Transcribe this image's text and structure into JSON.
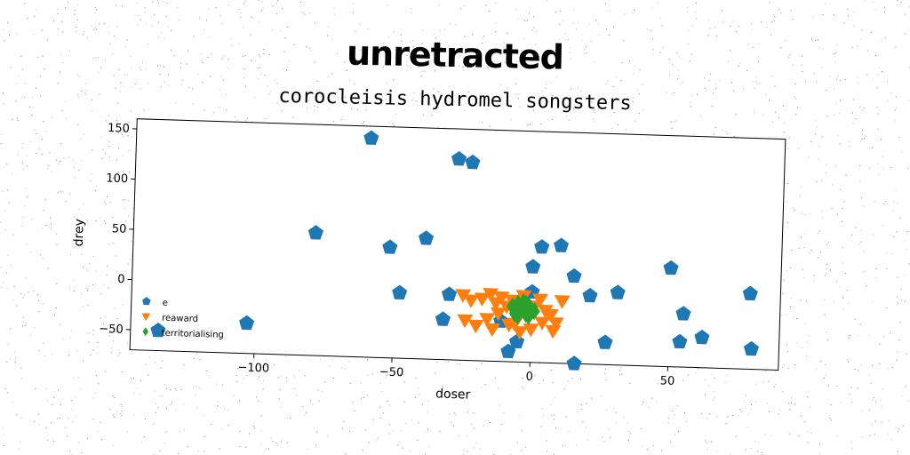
{
  "header": {
    "suptitle": "unretracted"
  },
  "chart_data": {
    "type": "scatter",
    "title": "corocleisis hydromel songsters",
    "xlabel": "doser",
    "ylabel": "drey",
    "xlim": [
      -145,
      90
    ],
    "ylim": [
      -70,
      160
    ],
    "xticks": [
      -100,
      -50,
      0,
      50
    ],
    "yticks": [
      -50,
      0,
      50,
      100,
      150
    ],
    "grid": false,
    "legend_position": "lower-left",
    "series": [
      {
        "name": "e",
        "marker": "pentagon",
        "color": "#1f77b4",
        "x": [
          -60,
          -28,
          -23,
          -79,
          -52,
          -39,
          -103,
          -48,
          -30,
          -32,
          -11,
          -8,
          3,
          10,
          0,
          15,
          0,
          -5,
          21,
          31,
          27,
          16,
          50,
          55,
          54,
          62,
          79,
          80,
          -135
        ],
        "y": [
          148,
          130,
          127,
          52,
          40,
          50,
          -40,
          -5,
          -5,
          -30,
          -30,
          -60,
          45,
          47,
          25,
          17,
          0,
          -50,
          -2,
          2,
          -48,
          -70,
          28,
          -17,
          -45,
          -40,
          5,
          -50,
          -50
        ]
      },
      {
        "name": "reaward",
        "marker": "triangle-down",
        "color": "#ff7f0e",
        "x": [
          -25,
          -22,
          -18,
          -15,
          -13,
          -11,
          -9,
          -7,
          -5,
          -3,
          -1,
          1,
          3,
          5,
          7,
          9,
          11,
          -20,
          -16,
          -12,
          -8,
          -4,
          0,
          4,
          8,
          -24,
          -14,
          -6
        ],
        "y": [
          -5,
          -10,
          -8,
          -3,
          -12,
          -6,
          -15,
          -9,
          -20,
          -4,
          -25,
          -14,
          -7,
          -18,
          -22,
          -30,
          -8,
          -35,
          -28,
          -22,
          -33,
          -40,
          -37,
          -30,
          -38,
          -30,
          -38,
          -32
        ]
      },
      {
        "name": "territorialising",
        "marker": "diamond",
        "color": "#2ca02c",
        "x": [
          -7,
          -6,
          -5,
          -4,
          -3,
          -2,
          -1,
          0,
          1,
          -5,
          -3,
          -1,
          -6,
          -2
        ],
        "y": [
          -15,
          -18,
          -12,
          -20,
          -16,
          -22,
          -14,
          -18,
          -19,
          -24,
          -10,
          -24,
          -22,
          -12
        ]
      }
    ]
  }
}
